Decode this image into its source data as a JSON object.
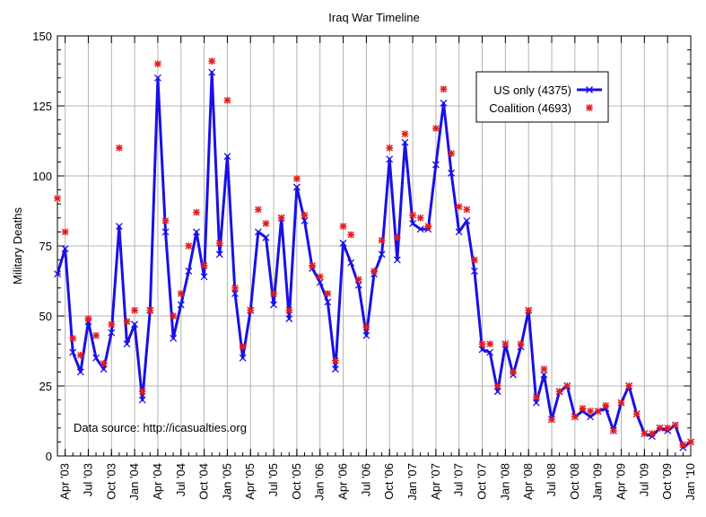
{
  "chart_data": {
    "type": "line",
    "title": "Iraq War Timeline",
    "ylabel": "Military Deaths",
    "xlabel": "",
    "annotation": "Data source: http://icasualties.org",
    "ylim": [
      0,
      150
    ],
    "y_ticks": [
      0,
      25,
      50,
      75,
      100,
      125,
      150
    ],
    "grid": true,
    "legend_position": "top-right",
    "x_tick_labels": [
      "Apr '03",
      "Jul '03",
      "Oct '03",
      "Jan '04",
      "Apr '04",
      "Jul '04",
      "Oct '04",
      "Jan '05",
      "Apr '05",
      "Jul '05",
      "Oct '05",
      "Jan '06",
      "Apr '06",
      "Jul '06",
      "Oct '06",
      "Jan '07",
      "Apr '07",
      "Jul '07",
      "Oct '07",
      "Jan '08",
      "Apr '08",
      "Jul '08",
      "Oct '08",
      "Jan '09",
      "Apr '09",
      "Jul '09",
      "Oct '09",
      "Jan '10"
    ],
    "x_tick_month_index": [
      1,
      4,
      7,
      10,
      13,
      16,
      19,
      22,
      25,
      28,
      31,
      34,
      37,
      40,
      43,
      46,
      49,
      52,
      55,
      58,
      61,
      64,
      67,
      70,
      73,
      76,
      79,
      82
    ],
    "x_start_label": "Mar '03",
    "series": [
      {
        "name": "US only (4375)",
        "style": "line-with-x-markers",
        "color": "#1a10e6",
        "values": [
          65,
          74,
          37,
          30,
          48,
          35,
          31,
          44,
          82,
          40,
          47,
          20,
          52,
          135,
          80,
          42,
          54,
          66,
          80,
          64,
          137,
          72,
          107,
          58,
          35,
          52,
          80,
          78,
          54,
          85,
          49,
          96,
          84,
          67,
          62,
          55,
          31,
          76,
          69,
          61,
          43,
          65,
          72,
          106,
          70,
          112,
          83,
          81,
          81,
          104,
          126,
          101,
          80,
          84,
          66,
          38,
          37,
          23,
          40,
          29,
          39,
          52,
          19,
          29,
          13,
          23,
          25,
          14,
          16,
          14,
          16,
          17,
          9,
          19,
          25,
          15,
          8,
          7,
          10,
          9,
          11,
          3,
          5
        ]
      },
      {
        "name": "Coalition (4693)",
        "style": "markers-only",
        "color": "#e61a1a",
        "values": [
          92,
          80,
          42,
          36,
          49,
          43,
          33,
          47,
          110,
          48,
          52,
          23,
          52,
          140,
          84,
          50,
          58,
          75,
          87,
          68,
          141,
          76,
          127,
          60,
          39,
          52,
          88,
          83,
          58,
          85,
          52,
          99,
          86,
          68,
          64,
          58,
          34,
          82,
          79,
          63,
          46,
          66,
          77,
          110,
          78,
          115,
          86,
          85,
          82,
          117,
          131,
          108,
          89,
          88,
          70,
          40,
          40,
          25,
          40,
          30,
          40,
          52,
          21,
          31,
          13,
          23,
          25,
          14,
          17,
          16,
          16,
          18,
          9,
          19,
          25,
          15,
          8,
          8,
          10,
          10,
          11,
          4,
          5
        ]
      }
    ]
  }
}
